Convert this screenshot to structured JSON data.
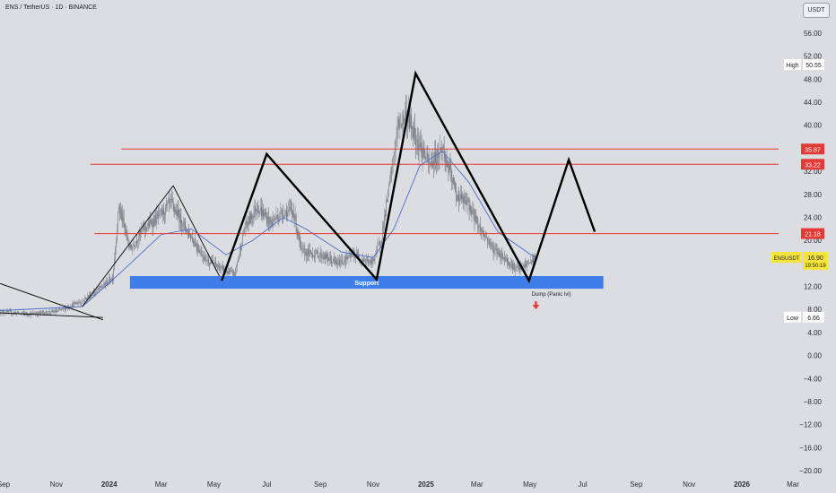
{
  "header": {
    "symbol_title": "ENS / TetherUS · 1D · BINANCE",
    "currency": "USDT"
  },
  "colors": {
    "background": "#dcdde0",
    "candle_up": "#8a8f99",
    "candle_down": "#6a6f79",
    "moving_average": "#4a6fd0",
    "resistance_line": "#e53935",
    "support_zone": "#3f7de8",
    "pattern_line": "#000000",
    "arrow": "#e53935",
    "current_price_badge": "#f5e43a"
  },
  "chart_data": {
    "type": "candlestick",
    "title": "",
    "price_axis": {
      "min": -20,
      "max": 56,
      "ticks": [
        56,
        52,
        48,
        44,
        40,
        36,
        32,
        28,
        24,
        20,
        16,
        12,
        8,
        4,
        0,
        -4,
        -8,
        -12,
        -16,
        -20
      ],
      "tick_labels": [
        "56.00",
        "52.00",
        "48.00",
        "44.00",
        "40.00",
        "36.00",
        "32.00",
        "28.00",
        "24.00",
        "20.00",
        "16.00",
        "12.00",
        "8.00",
        "4.00",
        "0.00",
        "−4.00",
        "−8.00",
        "−12.00",
        "−16.00",
        "−20.00"
      ]
    },
    "time_axis": {
      "start": "2023-09-01",
      "end": "2026-03-01",
      "ticks": [
        {
          "date": "2023-09-01",
          "label": "Sep"
        },
        {
          "date": "2023-11-01",
          "label": "Nov"
        },
        {
          "date": "2024-01-01",
          "label": "2024"
        },
        {
          "date": "2024-03-01",
          "label": "Mar"
        },
        {
          "date": "2024-05-01",
          "label": "May"
        },
        {
          "date": "2024-07-01",
          "label": "Jul"
        },
        {
          "date": "2024-09-01",
          "label": "Sep"
        },
        {
          "date": "2024-11-01",
          "label": "Nov"
        },
        {
          "date": "2025-01-01",
          "label": "2025"
        },
        {
          "date": "2025-03-01",
          "label": "Mar"
        },
        {
          "date": "2025-05-01",
          "label": "May"
        },
        {
          "date": "2025-07-01",
          "label": "Jul"
        },
        {
          "date": "2025-09-01",
          "label": "Sep"
        },
        {
          "date": "2025-11-01",
          "label": "Nov"
        },
        {
          "date": "2026-01-01",
          "label": "2026"
        },
        {
          "date": "2026-03-01",
          "label": "Mar"
        }
      ]
    },
    "price_path": [
      {
        "date": "2023-08-28",
        "close": 7.6
      },
      {
        "date": "2023-10-01",
        "close": 7.2
      },
      {
        "date": "2023-11-01",
        "close": 7.6
      },
      {
        "date": "2023-12-01",
        "close": 9.5
      },
      {
        "date": "2023-12-20",
        "close": 11.5
      },
      {
        "date": "2024-01-05",
        "close": 13.5
      },
      {
        "date": "2024-01-12",
        "close": 26.0
      },
      {
        "date": "2024-01-25",
        "close": 18.5
      },
      {
        "date": "2024-02-10",
        "close": 22.0
      },
      {
        "date": "2024-03-01",
        "close": 24.5
      },
      {
        "date": "2024-03-12",
        "close": 26.5
      },
      {
        "date": "2024-04-01",
        "close": 21.5
      },
      {
        "date": "2024-04-20",
        "close": 17.0
      },
      {
        "date": "2024-05-10",
        "close": 15.0
      },
      {
        "date": "2024-05-25",
        "close": 14.0
      },
      {
        "date": "2024-06-05",
        "close": 22.0
      },
      {
        "date": "2024-06-20",
        "close": 26.0
      },
      {
        "date": "2024-07-05",
        "close": 23.0
      },
      {
        "date": "2024-07-20",
        "close": 25.0
      },
      {
        "date": "2024-08-01",
        "close": 25.0
      },
      {
        "date": "2024-08-10",
        "close": 18.0
      },
      {
        "date": "2024-09-01",
        "close": 17.5
      },
      {
        "date": "2024-09-20",
        "close": 16.0
      },
      {
        "date": "2024-10-10",
        "close": 17.5
      },
      {
        "date": "2024-10-30",
        "close": 16.0
      },
      {
        "date": "2024-11-10",
        "close": 20.0
      },
      {
        "date": "2024-11-20",
        "close": 30.0
      },
      {
        "date": "2024-11-30",
        "close": 40.0
      },
      {
        "date": "2024-12-10",
        "close": 42.0
      },
      {
        "date": "2024-12-20",
        "close": 38.0
      },
      {
        "date": "2025-01-05",
        "close": 33.0
      },
      {
        "date": "2025-01-20",
        "close": 36.0
      },
      {
        "date": "2025-02-05",
        "close": 28.0
      },
      {
        "date": "2025-02-20",
        "close": 26.0
      },
      {
        "date": "2025-03-05",
        "close": 22.0
      },
      {
        "date": "2025-03-20",
        "close": 18.5
      },
      {
        "date": "2025-04-05",
        "close": 16.5
      },
      {
        "date": "2025-04-15",
        "close": 15.0
      },
      {
        "date": "2025-04-25",
        "close": 15.5
      },
      {
        "date": "2025-05-07",
        "close": 16.9
      }
    ],
    "moving_average": [
      {
        "date": "2023-08-28",
        "value": 7.8
      },
      {
        "date": "2023-12-01",
        "value": 8.5
      },
      {
        "date": "2024-01-15",
        "value": 14.5
      },
      {
        "date": "2024-03-01",
        "value": 21.0
      },
      {
        "date": "2024-04-05",
        "value": 22.0
      },
      {
        "date": "2024-05-15",
        "value": 17.5
      },
      {
        "date": "2024-06-15",
        "value": 20.0
      },
      {
        "date": "2024-07-20",
        "value": 24.0
      },
      {
        "date": "2024-08-15",
        "value": 22.0
      },
      {
        "date": "2024-09-25",
        "value": 18.0
      },
      {
        "date": "2024-11-01",
        "value": 17.0
      },
      {
        "date": "2024-11-25",
        "value": 22.0
      },
      {
        "date": "2024-12-25",
        "value": 33.0
      },
      {
        "date": "2025-01-20",
        "value": 35.5
      },
      {
        "date": "2025-02-20",
        "value": 30.0
      },
      {
        "date": "2025-03-25",
        "value": 21.5
      },
      {
        "date": "2025-05-07",
        "value": 17.0
      }
    ],
    "horizontal_levels": [
      {
        "price": 35.87,
        "label": "35.87",
        "from": "2024-01-15"
      },
      {
        "price": 33.22,
        "label": "33.22",
        "from": "2023-12-10"
      },
      {
        "price": 21.18,
        "label": "21.18",
        "from": "2023-12-15"
      }
    ],
    "support_zone": {
      "label": "Support",
      "top": 13.8,
      "bottom": 11.6,
      "from": "2024-01-25",
      "to": "2025-07-25"
    },
    "pattern_lines": [
      [
        {
          "date": "2024-05-10",
          "price": 13.0
        },
        {
          "date": "2024-07-01",
          "price": 35.0
        },
        {
          "date": "2024-11-05",
          "price": 13.2
        },
        {
          "date": "2024-12-20",
          "price": 49.0
        },
        {
          "date": "2025-04-30",
          "price": 13.0
        },
        {
          "date": "2025-06-15",
          "price": 34.0
        },
        {
          "date": "2025-07-15",
          "price": 21.5
        }
      ]
    ],
    "thin_lines": [
      [
        {
          "date": "2023-12-01",
          "price": 8.5
        },
        {
          "date": "2024-03-15",
          "price": 29.5
        }
      ],
      [
        {
          "date": "2024-03-15",
          "price": 29.5
        },
        {
          "date": "2024-05-10",
          "price": 13.0
        }
      ],
      [
        {
          "date": "2023-08-28",
          "price": 12.5
        },
        {
          "date": "2023-12-25",
          "price": 6.2
        }
      ],
      [
        {
          "date": "2023-08-28",
          "price": 7.4
        },
        {
          "date": "2023-12-25",
          "price": 6.6
        }
      ]
    ],
    "annotations": [
      {
        "text": "Dump (Panic lvl)",
        "date": "2025-05-03",
        "price": 10.4
      },
      {
        "type": "arrow-down",
        "date": "2025-05-08",
        "price": 8.8
      }
    ],
    "price_labels": [
      {
        "tag": "High",
        "value": "50.55",
        "price": 50.55,
        "style": "plain"
      },
      {
        "tag": "",
        "value": "35.87",
        "price": 35.87,
        "style": "red"
      },
      {
        "tag": "",
        "value": "33.22",
        "price": 33.22,
        "style": "red"
      },
      {
        "tag": "",
        "value": "21.18",
        "price": 21.18,
        "style": "red"
      },
      {
        "tag": "ENSUSDT",
        "value": "16.90",
        "sub": "19:50:19",
        "price": 16.9,
        "style": "yellow"
      },
      {
        "tag": "Low",
        "value": "6.66",
        "price": 6.66,
        "style": "plain"
      }
    ]
  }
}
